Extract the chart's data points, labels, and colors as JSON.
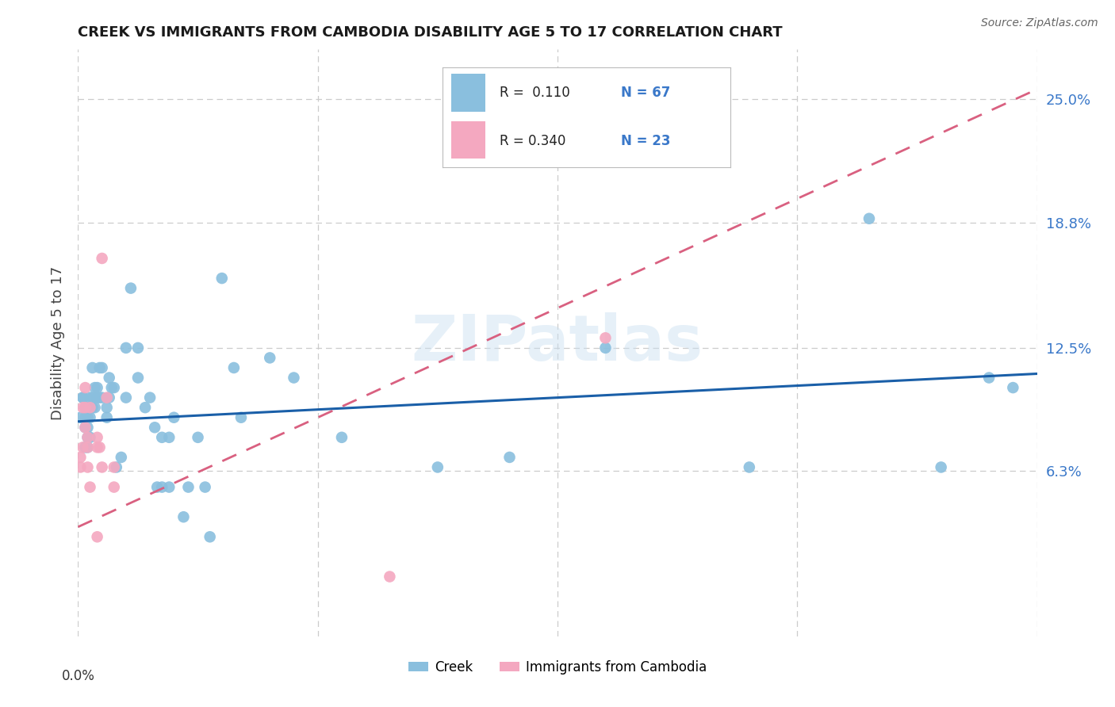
{
  "title": "CREEK VS IMMIGRANTS FROM CAMBODIA DISABILITY AGE 5 TO 17 CORRELATION CHART",
  "source": "Source: ZipAtlas.com",
  "ylabel": "Disability Age 5 to 17",
  "ytick_labels": [
    "6.3%",
    "12.5%",
    "18.8%",
    "25.0%"
  ],
  "ytick_values": [
    0.063,
    0.125,
    0.188,
    0.25
  ],
  "xlim": [
    0.0,
    0.4
  ],
  "ylim": [
    -0.02,
    0.275
  ],
  "creek_color": "#8abfde",
  "cambodia_color": "#f4a8c0",
  "creek_line_color": "#1a5fa8",
  "cambodia_line_color": "#d96080",
  "right_label_color": "#3a78c9",
  "grid_color": "#cccccc",
  "background_color": "#ffffff",
  "watermark": "ZIPatlas",
  "creek_x": [
    0.001,
    0.002,
    0.002,
    0.003,
    0.003,
    0.003,
    0.003,
    0.004,
    0.004,
    0.004,
    0.004,
    0.005,
    0.005,
    0.005,
    0.005,
    0.006,
    0.006,
    0.006,
    0.007,
    0.007,
    0.008,
    0.008,
    0.009,
    0.009,
    0.01,
    0.01,
    0.012,
    0.012,
    0.013,
    0.013,
    0.014,
    0.015,
    0.016,
    0.018,
    0.02,
    0.02,
    0.022,
    0.025,
    0.025,
    0.028,
    0.03,
    0.032,
    0.033,
    0.035,
    0.035,
    0.038,
    0.038,
    0.04,
    0.044,
    0.046,
    0.05,
    0.053,
    0.055,
    0.06,
    0.065,
    0.068,
    0.08,
    0.09,
    0.11,
    0.15,
    0.18,
    0.22,
    0.28,
    0.33,
    0.36,
    0.38,
    0.39
  ],
  "creek_y": [
    0.09,
    0.1,
    0.1,
    0.095,
    0.09,
    0.085,
    0.075,
    0.09,
    0.085,
    0.08,
    0.075,
    0.1,
    0.095,
    0.09,
    0.08,
    0.115,
    0.1,
    0.095,
    0.105,
    0.095,
    0.105,
    0.1,
    0.115,
    0.1,
    0.115,
    0.1,
    0.095,
    0.09,
    0.11,
    0.1,
    0.105,
    0.105,
    0.065,
    0.07,
    0.125,
    0.1,
    0.155,
    0.125,
    0.11,
    0.095,
    0.1,
    0.085,
    0.055,
    0.08,
    0.055,
    0.08,
    0.055,
    0.09,
    0.04,
    0.055,
    0.08,
    0.055,
    0.03,
    0.16,
    0.115,
    0.09,
    0.12,
    0.11,
    0.08,
    0.065,
    0.07,
    0.125,
    0.065,
    0.19,
    0.065,
    0.11,
    0.105
  ],
  "cambodia_x": [
    0.001,
    0.001,
    0.002,
    0.002,
    0.003,
    0.003,
    0.003,
    0.004,
    0.004,
    0.004,
    0.005,
    0.005,
    0.008,
    0.008,
    0.008,
    0.009,
    0.01,
    0.01,
    0.012,
    0.015,
    0.015,
    0.13,
    0.22
  ],
  "cambodia_y": [
    0.07,
    0.065,
    0.095,
    0.075,
    0.105,
    0.095,
    0.085,
    0.08,
    0.075,
    0.065,
    0.095,
    0.055,
    0.08,
    0.075,
    0.03,
    0.075,
    0.17,
    0.065,
    0.1,
    0.055,
    0.065,
    0.01,
    0.13
  ],
  "creek_trend_x": [
    0.0,
    0.4
  ],
  "creek_trend_y": [
    0.088,
    0.112
  ],
  "cambodia_trend_x": [
    0.0,
    0.4
  ],
  "cambodia_trend_y": [
    0.035,
    0.255
  ]
}
